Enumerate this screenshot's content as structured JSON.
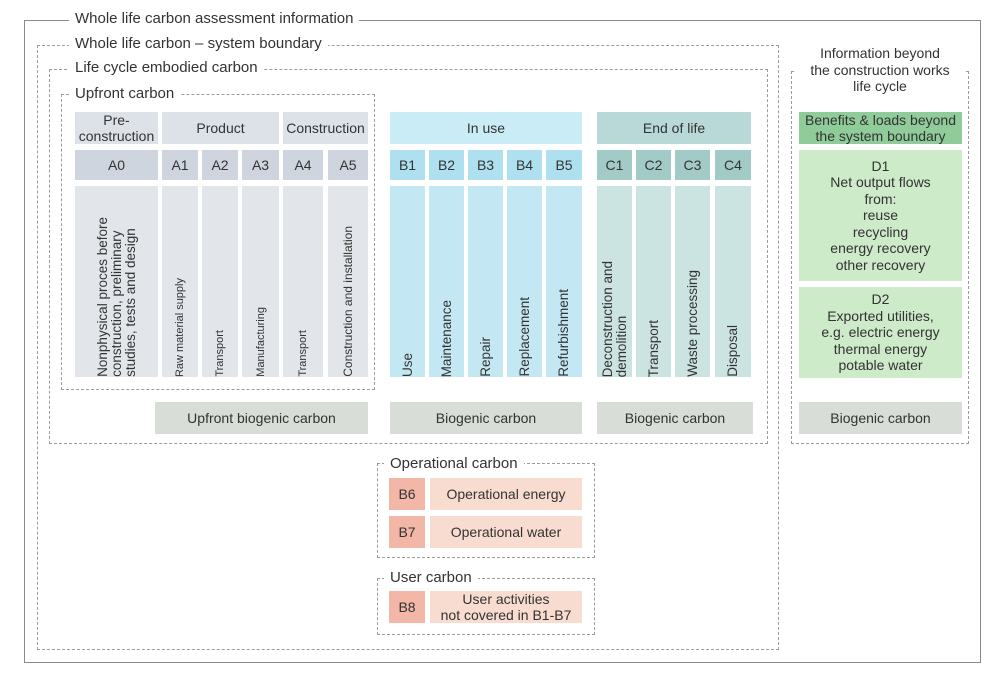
{
  "frames": {
    "whole_life_info": "Whole life carbon assessment information",
    "system_boundary": "Whole life carbon – system boundary",
    "embodied": "Life cycle embodied carbon",
    "upfront": "Upfront carbon",
    "beyond_title": [
      "Information beyond",
      "the construction works",
      "life cycle"
    ],
    "operational": "Operational carbon",
    "user": "User carbon"
  },
  "stages": {
    "pre": [
      "Pre-",
      "construction"
    ],
    "product": "Product",
    "construction": "Construction",
    "in_use": "In use",
    "end_of_life": "End of life",
    "benefits": [
      "Benefits & loads beyond",
      "the system boundary"
    ]
  },
  "codes": [
    "A0",
    "A1",
    "A2",
    "A3",
    "A4",
    "A5",
    "B1",
    "B2",
    "B3",
    "B4",
    "B5",
    "C1",
    "C2",
    "C3",
    "C4"
  ],
  "modules": {
    "a0": [
      "Nonphysical proces before",
      "construction, preliminary",
      "studies, tests and design"
    ],
    "a1": "Raw material supply",
    "a2": "Transport",
    "a3": "Manufacturing",
    "a4": "Transport",
    "a5": "Construction and installation",
    "b1": "Use",
    "b2": "Maintenance",
    "b3": "Repair",
    "b4": "Replacement",
    "b5": "Refurbishment",
    "c1": [
      "Deconstruction and",
      "demolition"
    ],
    "c2": "Transport",
    "c3": "Waste processing",
    "c4": "Disposal"
  },
  "beyond": {
    "d1": [
      "D1",
      "Net output flows",
      "from:",
      "reuse",
      "recycling",
      "energy recovery",
      "other recovery"
    ],
    "d2": [
      "D2",
      "Exported utilities,",
      "e.g. electric energy",
      "thermal energy",
      "potable water"
    ]
  },
  "biogenic": {
    "upfront": "Upfront biogenic carbon",
    "in_use": "Biogenic carbon",
    "end_of_life": "Biogenic carbon",
    "beyond": "Biogenic carbon"
  },
  "operational": {
    "b6_code": "B6",
    "b6_label": "Operational energy",
    "b7_code": "B7",
    "b7_label": "Operational water"
  },
  "user": {
    "b8_code": "B8",
    "b8_label": [
      "User activities",
      "not covered in B1-B7"
    ]
  }
}
